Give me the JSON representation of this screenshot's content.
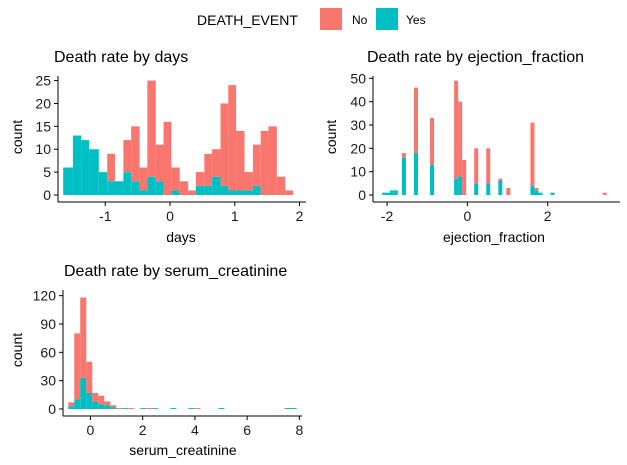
{
  "legend": {
    "title": "DEATH_EVENT",
    "items": [
      {
        "label": "No",
        "color": "#F8766D"
      },
      {
        "label": "Yes",
        "color": "#00BFC4"
      }
    ]
  },
  "chart_data": [
    {
      "type": "bar",
      "stacked": true,
      "title": "Death rate by days",
      "xlabel": "days",
      "ylabel": "count",
      "xlim": [
        -1.73,
        2.1
      ],
      "ylim": [
        0,
        26
      ],
      "xticks": [
        "-1",
        "0",
        "1",
        "2"
      ],
      "xtick_values": [
        -1,
        0,
        1,
        2
      ],
      "yticks": [
        "0",
        "5",
        "10",
        "15",
        "20",
        "25"
      ],
      "ytick_values": [
        0,
        5,
        10,
        15,
        20,
        25
      ],
      "bin_edges": [
        -1.65,
        -1.5,
        -1.37,
        -1.25,
        -1.1,
        -0.97,
        -0.85,
        -0.72,
        -0.6,
        -0.47,
        -0.35,
        -0.22,
        -0.1,
        0.02,
        0.15,
        0.28,
        0.4,
        0.53,
        0.65,
        0.78,
        0.9,
        1.02,
        1.15,
        1.28,
        1.4,
        1.52,
        1.65,
        1.78,
        1.9
      ],
      "series": [
        {
          "name": "Yes",
          "values": [
            6,
            13,
            12,
            10,
            5,
            3,
            3,
            5,
            3,
            1,
            4,
            3,
            0,
            1,
            0,
            0,
            2,
            2,
            4,
            2,
            1,
            1,
            1,
            2,
            0,
            0,
            0,
            0
          ]
        },
        {
          "name": "No",
          "values": [
            0,
            0,
            0,
            0,
            0,
            6,
            0,
            7,
            12,
            5,
            21,
            8,
            16,
            5,
            3,
            1,
            3,
            7,
            6,
            18,
            23,
            13,
            4,
            9,
            14,
            15,
            4,
            1
          ]
        }
      ]
    },
    {
      "type": "bar",
      "stacked": true,
      "title": "Death rate by ejection_fraction",
      "xlabel": "ejection_fraction",
      "ylabel": "count",
      "xlim": [
        -2.35,
        3.8
      ],
      "ylim": [
        0,
        51
      ],
      "xticks": [
        "-2",
        "0",
        "2"
      ],
      "xtick_values": [
        -2,
        0,
        2
      ],
      "yticks": [
        "0",
        "10",
        "20",
        "30",
        "40",
        "50"
      ],
      "ytick_values": [
        0,
        10,
        20,
        30,
        40,
        50
      ],
      "bin_edges": [
        -2.12,
        -2.02,
        -1.93,
        -1.83,
        -1.73,
        -1.63,
        -1.53,
        -1.43,
        -1.33,
        -1.23,
        -1.13,
        -1.03,
        -0.93,
        -0.83,
        -0.73,
        -0.63,
        -0.53,
        -0.43,
        -0.33,
        -0.23,
        -0.13,
        -0.03,
        0.07,
        0.17,
        0.27,
        0.37,
        0.47,
        0.57,
        0.67,
        0.77,
        0.87,
        0.97,
        1.07,
        1.17,
        1.27,
        1.37,
        1.47,
        1.57,
        1.67,
        1.77,
        1.87,
        1.97,
        2.07,
        2.17,
        2.27,
        2.37,
        2.47,
        2.57,
        2.67,
        2.77,
        2.87,
        2.97,
        3.07,
        3.17,
        3.27,
        3.37,
        3.47,
        3.57
      ],
      "series": [
        {
          "name": "Yes",
          "values": [
            1,
            1,
            2,
            2,
            0,
            16,
            0,
            0,
            18,
            0,
            0,
            0,
            13,
            0,
            0,
            0,
            0,
            0,
            7,
            8,
            0,
            0,
            0,
            5,
            0,
            0,
            5,
            0,
            0,
            6,
            0,
            0,
            0,
            0,
            0,
            0,
            0,
            4,
            2,
            1,
            0,
            0,
            1,
            0,
            0,
            0,
            0,
            0,
            0,
            0,
            0,
            0,
            0,
            0,
            0,
            0,
            0
          ],
          "note": ""
        },
        {
          "name": "No",
          "values": [
            0,
            0,
            0,
            0,
            0,
            2,
            0,
            0,
            28,
            0,
            0,
            0,
            20,
            0,
            0,
            0,
            0,
            0,
            42,
            32,
            15,
            0,
            0,
            15,
            0,
            0,
            15,
            0,
            0,
            1,
            0,
            3,
            0,
            0,
            0,
            0,
            0,
            27,
            1,
            0,
            0,
            0,
            0,
            0,
            0,
            0,
            0,
            0,
            0,
            0,
            0,
            0,
            0,
            0,
            0,
            1,
            0
          ]
        }
      ]
    },
    {
      "type": "bar",
      "stacked": true,
      "title": "Death rate by serum_creatinine",
      "xlabel": "serum_creatinine",
      "ylabel": "count",
      "xlim": [
        -1.05,
        8.1
      ],
      "ylim": [
        0,
        126
      ],
      "xticks": [
        "0",
        "2",
        "4",
        "6",
        "8"
      ],
      "xtick_values": [
        0,
        2,
        4,
        6,
        8
      ],
      "yticks": [
        "0",
        "30",
        "60",
        "90",
        "120"
      ],
      "ytick_values": [
        0,
        30,
        60,
        90,
        120
      ],
      "bin_edges": [
        -0.85,
        -0.62,
        -0.39,
        -0.16,
        0.07,
        0.3,
        0.53,
        0.76,
        0.99,
        1.22,
        1.45,
        1.68,
        1.91,
        2.14,
        2.37,
        2.6,
        2.83,
        3.06,
        3.29,
        3.52,
        3.75,
        3.98,
        4.21,
        4.44,
        4.67,
        4.9,
        5.13,
        5.36,
        5.59,
        5.82,
        6.05,
        6.28,
        6.51,
        6.74,
        6.97,
        7.2,
        7.43,
        7.66,
        7.89
      ],
      "series": [
        {
          "name": "Yes",
          "values": [
            3,
            10,
            33,
            17,
            8,
            5,
            4,
            2,
            0,
            1,
            0,
            0,
            1,
            0,
            1,
            0,
            0,
            1,
            0,
            0,
            1,
            0,
            0,
            0,
            0,
            1,
            0,
            0,
            0,
            0,
            0,
            0,
            0,
            0,
            0,
            0,
            1,
            1
          ]
        },
        {
          "name": "No",
          "values": [
            4,
            70,
            85,
            33,
            9,
            9,
            4,
            2,
            1,
            0,
            1,
            0,
            0,
            1,
            0,
            0,
            0,
            0,
            0,
            0,
            0,
            1,
            0,
            0,
            0,
            0,
            0,
            0,
            0,
            0,
            0,
            0,
            0,
            0,
            0,
            0,
            0,
            0
          ]
        }
      ]
    }
  ]
}
